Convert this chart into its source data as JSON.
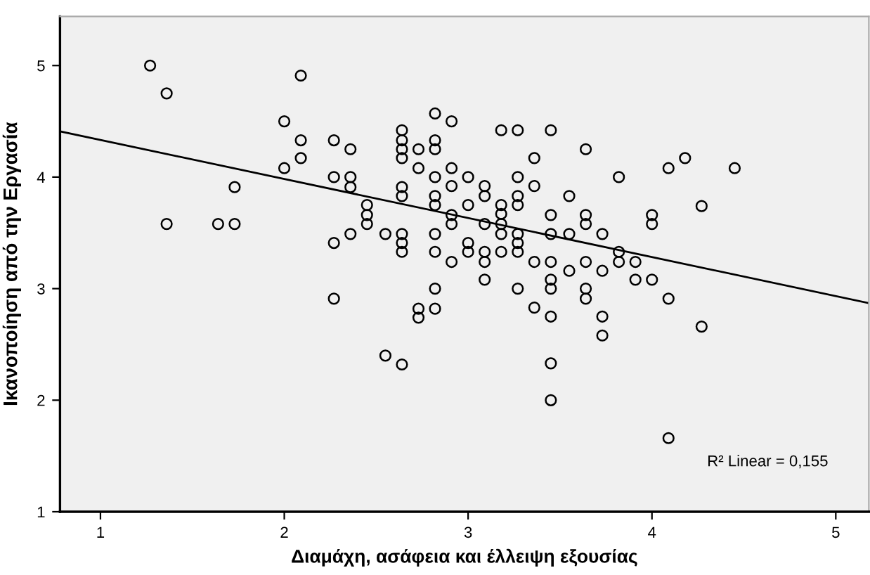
{
  "chart_data": {
    "type": "scatter",
    "xlabel": "Διαμάχη, ασάφεια και έλλειψη εξουσίας",
    "ylabel": "Ικανοποίηση από την Εργασία",
    "xlim": [
      0.78,
      5.18
    ],
    "ylim": [
      1,
      5.44
    ],
    "xticks": [
      1,
      2,
      3,
      4,
      5
    ],
    "yticks": [
      1,
      2,
      3,
      4,
      5
    ],
    "grid": false,
    "legend": false,
    "annotations": [
      "R² Linear = 0,155"
    ],
    "series": [
      {
        "marker": "circle",
        "color": "#000000",
        "x": [
          1.27,
          1.36,
          2.09,
          2.0,
          2.09,
          2.27,
          2.36,
          2.64,
          2.64,
          2.64,
          2.64,
          2.09,
          2.0,
          1.73,
          2.27,
          2.36,
          2.36,
          2.64,
          2.64,
          2.45,
          2.45,
          2.45,
          1.36,
          1.64,
          1.73,
          2.55,
          2.36,
          2.27,
          2.64,
          2.64,
          2.64,
          2.27,
          2.55,
          2.64,
          2.73,
          2.73,
          2.82,
          2.82,
          2.82,
          2.91,
          3.0,
          2.82,
          2.91,
          2.82,
          2.82,
          2.73,
          3.18,
          3.27,
          3.45,
          3.36,
          3.64,
          2.73,
          2.91,
          2.82,
          3.0,
          3.27,
          2.82,
          2.91,
          3.09,
          3.09,
          3.36,
          3.27,
          3.27,
          3.55,
          2.82,
          3.0,
          3.18,
          3.18,
          3.18,
          3.18,
          2.91,
          2.91,
          3.09,
          3.45,
          3.64,
          3.64,
          2.82,
          3.0,
          3.09,
          3.09,
          3.18,
          3.27,
          3.27,
          3.27,
          3.45,
          3.55,
          3.73,
          3.36,
          3.45,
          3.64,
          3.55,
          3.73,
          3.45,
          3.09,
          3.27,
          3.45,
          3.64,
          3.64,
          3.36,
          3.45,
          3.73,
          4.09,
          4.18,
          4.45,
          3.82,
          4.27,
          4.0,
          4.0,
          3.82,
          3.82,
          3.91,
          3.91,
          4.0,
          4.09,
          3.73,
          4.27,
          3.45,
          3.45,
          4.09
        ],
        "values": [
          5.0,
          4.75,
          4.91,
          4.5,
          4.33,
          4.33,
          4.25,
          4.42,
          4.33,
          4.25,
          4.17,
          4.17,
          4.08,
          3.91,
          4.0,
          4.0,
          3.91,
          3.91,
          3.83,
          3.75,
          3.66,
          3.58,
          3.58,
          3.58,
          3.58,
          3.49,
          3.49,
          3.41,
          3.49,
          3.41,
          3.33,
          2.91,
          2.4,
          2.32,
          2.82,
          2.74,
          3.0,
          2.82,
          3.33,
          3.24,
          3.33,
          4.57,
          4.5,
          4.33,
          4.25,
          4.25,
          4.42,
          4.42,
          4.42,
          4.17,
          4.25,
          4.08,
          4.08,
          4.0,
          4.0,
          4.0,
          3.83,
          3.92,
          3.92,
          3.83,
          3.92,
          3.83,
          3.75,
          3.83,
          3.75,
          3.75,
          3.75,
          3.67,
          3.58,
          3.49,
          3.66,
          3.58,
          3.58,
          3.66,
          3.66,
          3.58,
          3.49,
          3.41,
          3.33,
          3.24,
          3.33,
          3.49,
          3.41,
          3.33,
          3.49,
          3.49,
          3.49,
          3.24,
          3.24,
          3.24,
          3.16,
          3.16,
          3.08,
          3.08,
          3.0,
          3.0,
          3.0,
          2.91,
          2.83,
          2.75,
          2.75,
          4.08,
          4.17,
          4.08,
          4.0,
          3.74,
          3.66,
          3.58,
          3.33,
          3.24,
          3.24,
          3.08,
          3.08,
          2.91,
          2.58,
          2.66,
          2.33,
          2.0,
          1.66
        ]
      },
      {
        "type": "line",
        "marker": "none",
        "line_style": "solid",
        "color": "#000000",
        "x": [
          0.78,
          5.18
        ],
        "values": [
          4.41,
          2.87
        ]
      }
    ]
  }
}
